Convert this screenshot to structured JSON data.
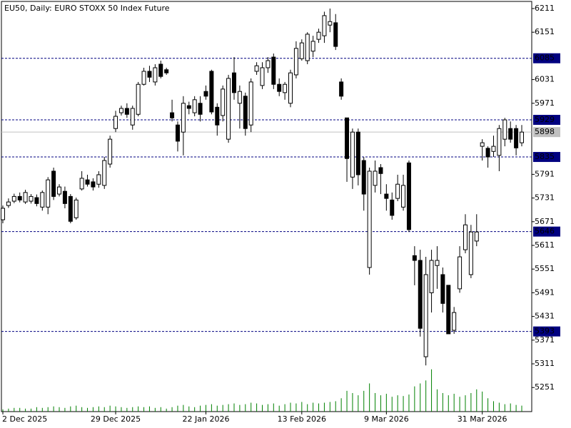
{
  "chart_data": {
    "type": "candlestick",
    "title": "EU50, Daily:  EURO STOXX 50 Index Future",
    "categories": [
      "2 Dec 2025",
      null,
      null,
      null,
      null,
      null,
      null,
      null,
      null,
      null,
      null,
      null,
      null,
      null,
      null,
      null,
      null,
      null,
      null,
      null,
      "29 Dec 2025",
      null,
      null,
      null,
      null,
      null,
      null,
      null,
      null,
      null,
      null,
      null,
      null,
      null,
      null,
      null,
      "22 Jan 2026",
      null,
      null,
      null,
      null,
      null,
      null,
      null,
      null,
      null,
      null,
      null,
      null,
      null,
      null,
      null,
      null,
      "13 Feb 2026",
      null,
      null,
      null,
      null,
      null,
      null,
      null,
      null,
      null,
      null,
      null,
      null,
      null,
      null,
      "9 Mar 2026",
      null,
      null,
      null,
      null,
      null,
      null,
      null,
      null,
      null,
      null,
      null,
      null,
      null,
      null,
      null,
      null,
      "31 Mar 2026",
      null,
      null,
      null,
      null,
      null,
      null,
      null
    ],
    "open": [
      5676,
      5712,
      5723,
      5735,
      5721,
      5723,
      5732,
      5708,
      5708,
      5799,
      5741,
      5748,
      5735,
      5681,
      5754,
      5777,
      5772,
      5766,
      5763,
      5817,
      5907,
      5947,
      5958,
      5916,
      5943,
      6019,
      6052,
      6025,
      6070,
      6056,
      5947,
      5916,
      5898,
      5965,
      5947,
      5971,
      6001,
      6052,
      5961,
      5940,
      5880,
      6048,
      5971,
      5989,
      5916,
      6052,
      6016,
      6061,
      6088,
      6019,
      5998,
      5971,
      6043,
      6084,
      6079,
      6103,
      6133,
      6142,
      6169,
      6175,
      6025,
      5934,
      5784,
      5898,
      5826,
      5555,
      5763,
      5808,
      5741,
      5726,
      5730,
      5708,
      5820,
      5585,
      5573,
      5329,
      5491,
      5560,
      5537,
      5510,
      5396,
      5501,
      5600,
      5537,
      5622,
      5862,
      5857,
      5849,
      5839,
      5880,
      5907,
      5907,
      5871
    ],
    "high": [
      5712,
      5730,
      5742,
      5745,
      5752,
      5741,
      5740,
      5750,
      5784,
      5808,
      5766,
      5760,
      5741,
      5732,
      5799,
      5790,
      5781,
      5799,
      5835,
      5889,
      5952,
      5965,
      5971,
      5965,
      6025,
      6061,
      6066,
      6070,
      6079,
      6061,
      5980,
      5925,
      5989,
      5975,
      5989,
      5989,
      6016,
      6056,
      5971,
      6016,
      6043,
      6088,
      6016,
      5998,
      6034,
      6075,
      6075,
      6088,
      6097,
      6034,
      6025,
      6056,
      6128,
      6133,
      6151,
      6142,
      6160,
      6203,
      6211,
      6197,
      6034,
      5934,
      5907,
      5907,
      5835,
      5808,
      5826,
      5817,
      5766,
      5745,
      5790,
      5790,
      5826,
      5609,
      5600,
      5582,
      5600,
      5609,
      5555,
      5510,
      5455,
      5609,
      5690,
      5663,
      5690,
      5880,
      5862,
      5889,
      5916,
      5934,
      5925,
      5916,
      5916
    ],
    "low": [
      5667,
      5706,
      5718,
      5720,
      5716,
      5717,
      5710,
      5699,
      5690,
      5726,
      5735,
      5705,
      5667,
      5676,
      5750,
      5760,
      5750,
      5757,
      5754,
      5808,
      5898,
      5940,
      5934,
      5904,
      5938,
      6016,
      6025,
      6016,
      6034,
      6043,
      5925,
      5849,
      5839,
      5943,
      5938,
      5925,
      5980,
      5943,
      5889,
      5925,
      5871,
      5980,
      5907,
      5889,
      5898,
      6043,
      6007,
      6048,
      6007,
      5989,
      5980,
      5961,
      6034,
      6079,
      6070,
      6088,
      6124,
      6124,
      6151,
      6106,
      5980,
      5772,
      5754,
      5763,
      5699,
      5537,
      5745,
      5741,
      5699,
      5676,
      5723,
      5699,
      5645,
      5510,
      5380,
      5307,
      5441,
      5501,
      5441,
      5387,
      5387,
      5491,
      5591,
      5528,
      5609,
      5826,
      5808,
      5835,
      5799,
      5862,
      5871,
      5839,
      5862
    ],
    "close": [
      5705,
      5721,
      5735,
      5726,
      5745,
      5735,
      5717,
      5745,
      5777,
      5735,
      5759,
      5717,
      5672,
      5726,
      5781,
      5766,
      5759,
      5790,
      5826,
      5880,
      5938,
      5958,
      5943,
      5958,
      6019,
      6052,
      6037,
      6061,
      6039,
      6048,
      5934,
      5875,
      5971,
      5958,
      5980,
      5943,
      5989,
      5949,
      5916,
      6007,
      6034,
      5998,
      6001,
      5907,
      6025,
      6066,
      6061,
      6079,
      6019,
      6001,
      6019,
      6048,
      6110,
      6124,
      6146,
      6128,
      6151,
      6193,
      6178,
      6115,
      5989,
      5831,
      5898,
      5790,
      5741,
      5799,
      5799,
      5793,
      5730,
      5687,
      5766,
      5763,
      5651,
      5573,
      5401,
      5537,
      5573,
      5573,
      5464,
      5387,
      5441,
      5582,
      5663,
      5645,
      5645,
      5871,
      5835,
      5862,
      5907,
      5929,
      5880,
      5858,
      5898
    ],
    "volume": [
      3,
      4,
      5,
      5,
      4,
      4,
      6,
      5,
      6,
      7,
      6,
      5,
      7,
      8,
      6,
      5,
      6,
      7,
      6,
      8,
      7,
      6,
      5,
      6,
      7,
      6,
      7,
      5,
      6,
      4,
      6,
      8,
      9,
      7,
      6,
      8,
      9,
      10,
      8,
      9,
      10,
      11,
      9,
      10,
      12,
      11,
      9,
      10,
      11,
      8,
      10,
      12,
      11,
      13,
      10,
      12,
      11,
      12,
      13,
      14,
      18,
      28,
      25,
      22,
      28,
      38,
      25,
      22,
      24,
      20,
      22,
      21,
      23,
      34,
      38,
      42,
      57,
      30,
      25,
      22,
      24,
      20,
      22,
      25,
      30,
      27,
      18,
      14,
      12,
      10,
      11,
      9,
      8
    ],
    "volume_color": "#008000",
    "ylim": [
      5190,
      6229
    ],
    "yticks": [
      6211,
      6151,
      6031,
      5971,
      5791,
      5731,
      5671,
      5611,
      5551,
      5491,
      5431,
      5371,
      5311,
      5251
    ],
    "levels": [
      6085,
      5929,
      5835,
      5646,
      5393
    ],
    "level_color": "#000080",
    "current": 5898,
    "current_color": "#c0c0c0"
  }
}
